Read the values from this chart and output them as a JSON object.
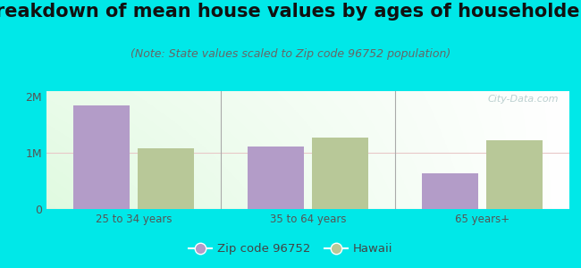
{
  "title": "Breakdown of mean house values by ages of householders",
  "subtitle": "(Note: State values scaled to Zip code 96752 population)",
  "categories": [
    "25 to 34 years",
    "35 to 64 years",
    "65 years+"
  ],
  "zip_values": [
    1850000,
    1120000,
    640000
  ],
  "hawaii_values": [
    1080000,
    1280000,
    1230000
  ],
  "zip_color": "#b39cc8",
  "hawaii_color": "#b8c898",
  "background_color": "#00e8e8",
  "ylim": [
    0,
    2100000
  ],
  "yticks": [
    0,
    1000000,
    2000000
  ],
  "ytick_labels": [
    "0",
    "1M",
    "2M"
  ],
  "title_fontsize": 15,
  "subtitle_fontsize": 9,
  "legend_labels": [
    "Zip code 96752",
    "Hawaii"
  ],
  "watermark": "City-Data.com",
  "bar_width": 0.32,
  "bar_gap": 0.05
}
